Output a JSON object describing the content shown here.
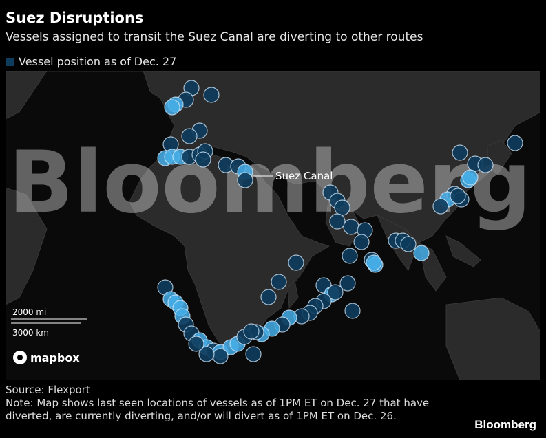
{
  "header": {
    "title": "Suez Disruptions",
    "subtitle": "Vessels assigned to transit the Suez Canal are diverting to other routes"
  },
  "legend": {
    "label": "Vessel position as of Dec. 27"
  },
  "map": {
    "annotation": "Suez Canal",
    "scale": [
      "2000 mi",
      "3000 km"
    ],
    "attribution": "mapbox",
    "watermark": "Bloomberg"
  },
  "footer": {
    "source": "Source: Flexport",
    "note": "Note: Map shows last seen locations of vessels as of 1PM ET on Dec. 27 that have diverted, are currently diverting, and/or will divert as of 1PM ET on Dec. 26.",
    "logo": "Bloomberg"
  }
}
